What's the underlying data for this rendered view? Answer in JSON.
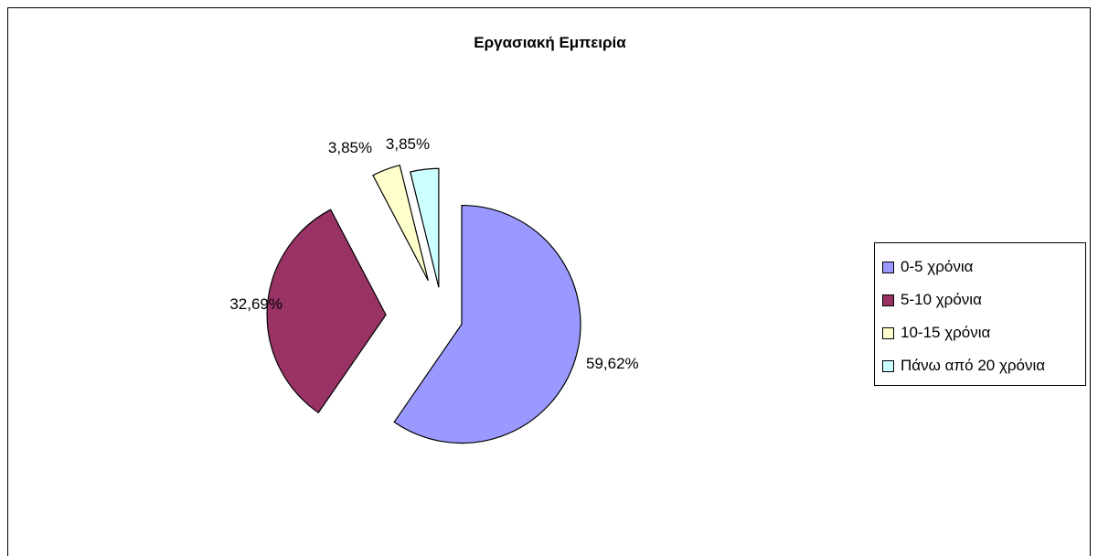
{
  "chart_data": {
    "type": "pie",
    "title": "Εργασιακή Εμπειρία",
    "slices": [
      {
        "label": "0-5 χρόνια",
        "value": 59.62,
        "data_label": "59,62%",
        "color": "#9999ff"
      },
      {
        "label": "5-10 χρόνια",
        "value": 32.69,
        "data_label": "32,69%",
        "color": "#993366"
      },
      {
        "label": "10-15 χρόνια",
        "value": 3.85,
        "data_label": "3,85%",
        "color": "#ffffcc"
      },
      {
        "label": "Πάνω από 20 χρόνια",
        "value": 3.85,
        "data_label": "3,85%",
        "color": "#ccffff"
      }
    ],
    "exploded": true,
    "legend_position": "right"
  }
}
